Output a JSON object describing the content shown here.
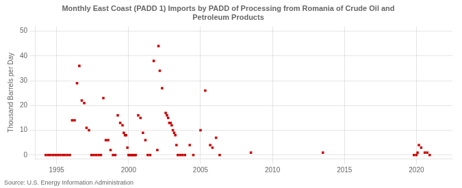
{
  "chart_data": {
    "type": "scatter",
    "title": "Monthly East Coast (PADD 1) Imports by PADD of Processing from Romania of Crude Oil and\nPetroleum Products",
    "ylabel": "Thousand Barrels per Day",
    "annotations": [
      "Source: U.S. Energy Information Administration"
    ],
    "color": "#cc0000",
    "marker": "square",
    "grid": true,
    "xlim": [
      1993.5,
      2022.5
    ],
    "ylim": [
      -1.5,
      52
    ],
    "xticks": [
      1995,
      2000,
      2005,
      2010,
      2015,
      2020
    ],
    "yticks": [
      0,
      10,
      20,
      30,
      40,
      50
    ],
    "x": [
      1994.25,
      1994.42,
      1994.58,
      1994.75,
      1994.92,
      1995.08,
      1995.25,
      1995.42,
      1995.58,
      1995.75,
      1995.92,
      1996.08,
      1996.25,
      1996.42,
      1996.58,
      1996.75,
      1996.92,
      1997.08,
      1997.25,
      1997.42,
      1997.58,
      1997.75,
      1997.92,
      1998.08,
      1998.25,
      1998.42,
      1998.58,
      1998.75,
      1998.92,
      1999.08,
      1999.25,
      1999.42,
      1999.58,
      1999.67,
      1999.75,
      1999.83,
      1999.92,
      2000.0,
      2000.08,
      2000.17,
      2000.25,
      2000.33,
      2000.42,
      2000.5,
      2000.67,
      2000.83,
      2001.0,
      2001.17,
      2001.33,
      2001.5,
      2001.75,
      2002.0,
      2002.08,
      2002.17,
      2002.33,
      2002.58,
      2002.67,
      2002.75,
      2002.83,
      2002.92,
      2003.0,
      2003.08,
      2003.17,
      2003.25,
      2003.33,
      2003.42,
      2003.58,
      2003.75,
      2003.92,
      2004.25,
      2004.5,
      2005.0,
      2005.33,
      2005.67,
      2005.83,
      2006.08,
      2006.33,
      2008.5,
      2013.5,
      2019.83,
      2020.0,
      2020.08,
      2020.17,
      2020.33,
      2020.58,
      2020.75,
      2020.92
    ],
    "values": [
      0,
      0,
      0,
      0,
      0,
      0,
      0,
      0,
      0,
      0,
      0,
      14,
      14,
      29,
      36,
      22,
      21,
      11,
      10,
      0,
      0,
      0,
      0,
      0,
      23,
      6,
      6,
      2,
      0,
      0,
      16,
      13,
      12,
      9,
      8,
      8,
      3,
      0,
      0,
      0,
      0,
      0,
      0,
      0,
      16,
      15,
      9,
      6,
      0,
      0,
      38,
      2,
      44,
      34,
      27,
      17,
      16,
      15,
      13,
      13,
      12,
      10,
      9,
      8,
      4,
      0,
      0,
      0,
      0,
      4,
      0,
      10,
      26,
      4,
      3,
      7,
      0,
      1,
      1,
      0,
      0,
      1,
      4,
      3,
      1,
      1,
      0
    ]
  }
}
